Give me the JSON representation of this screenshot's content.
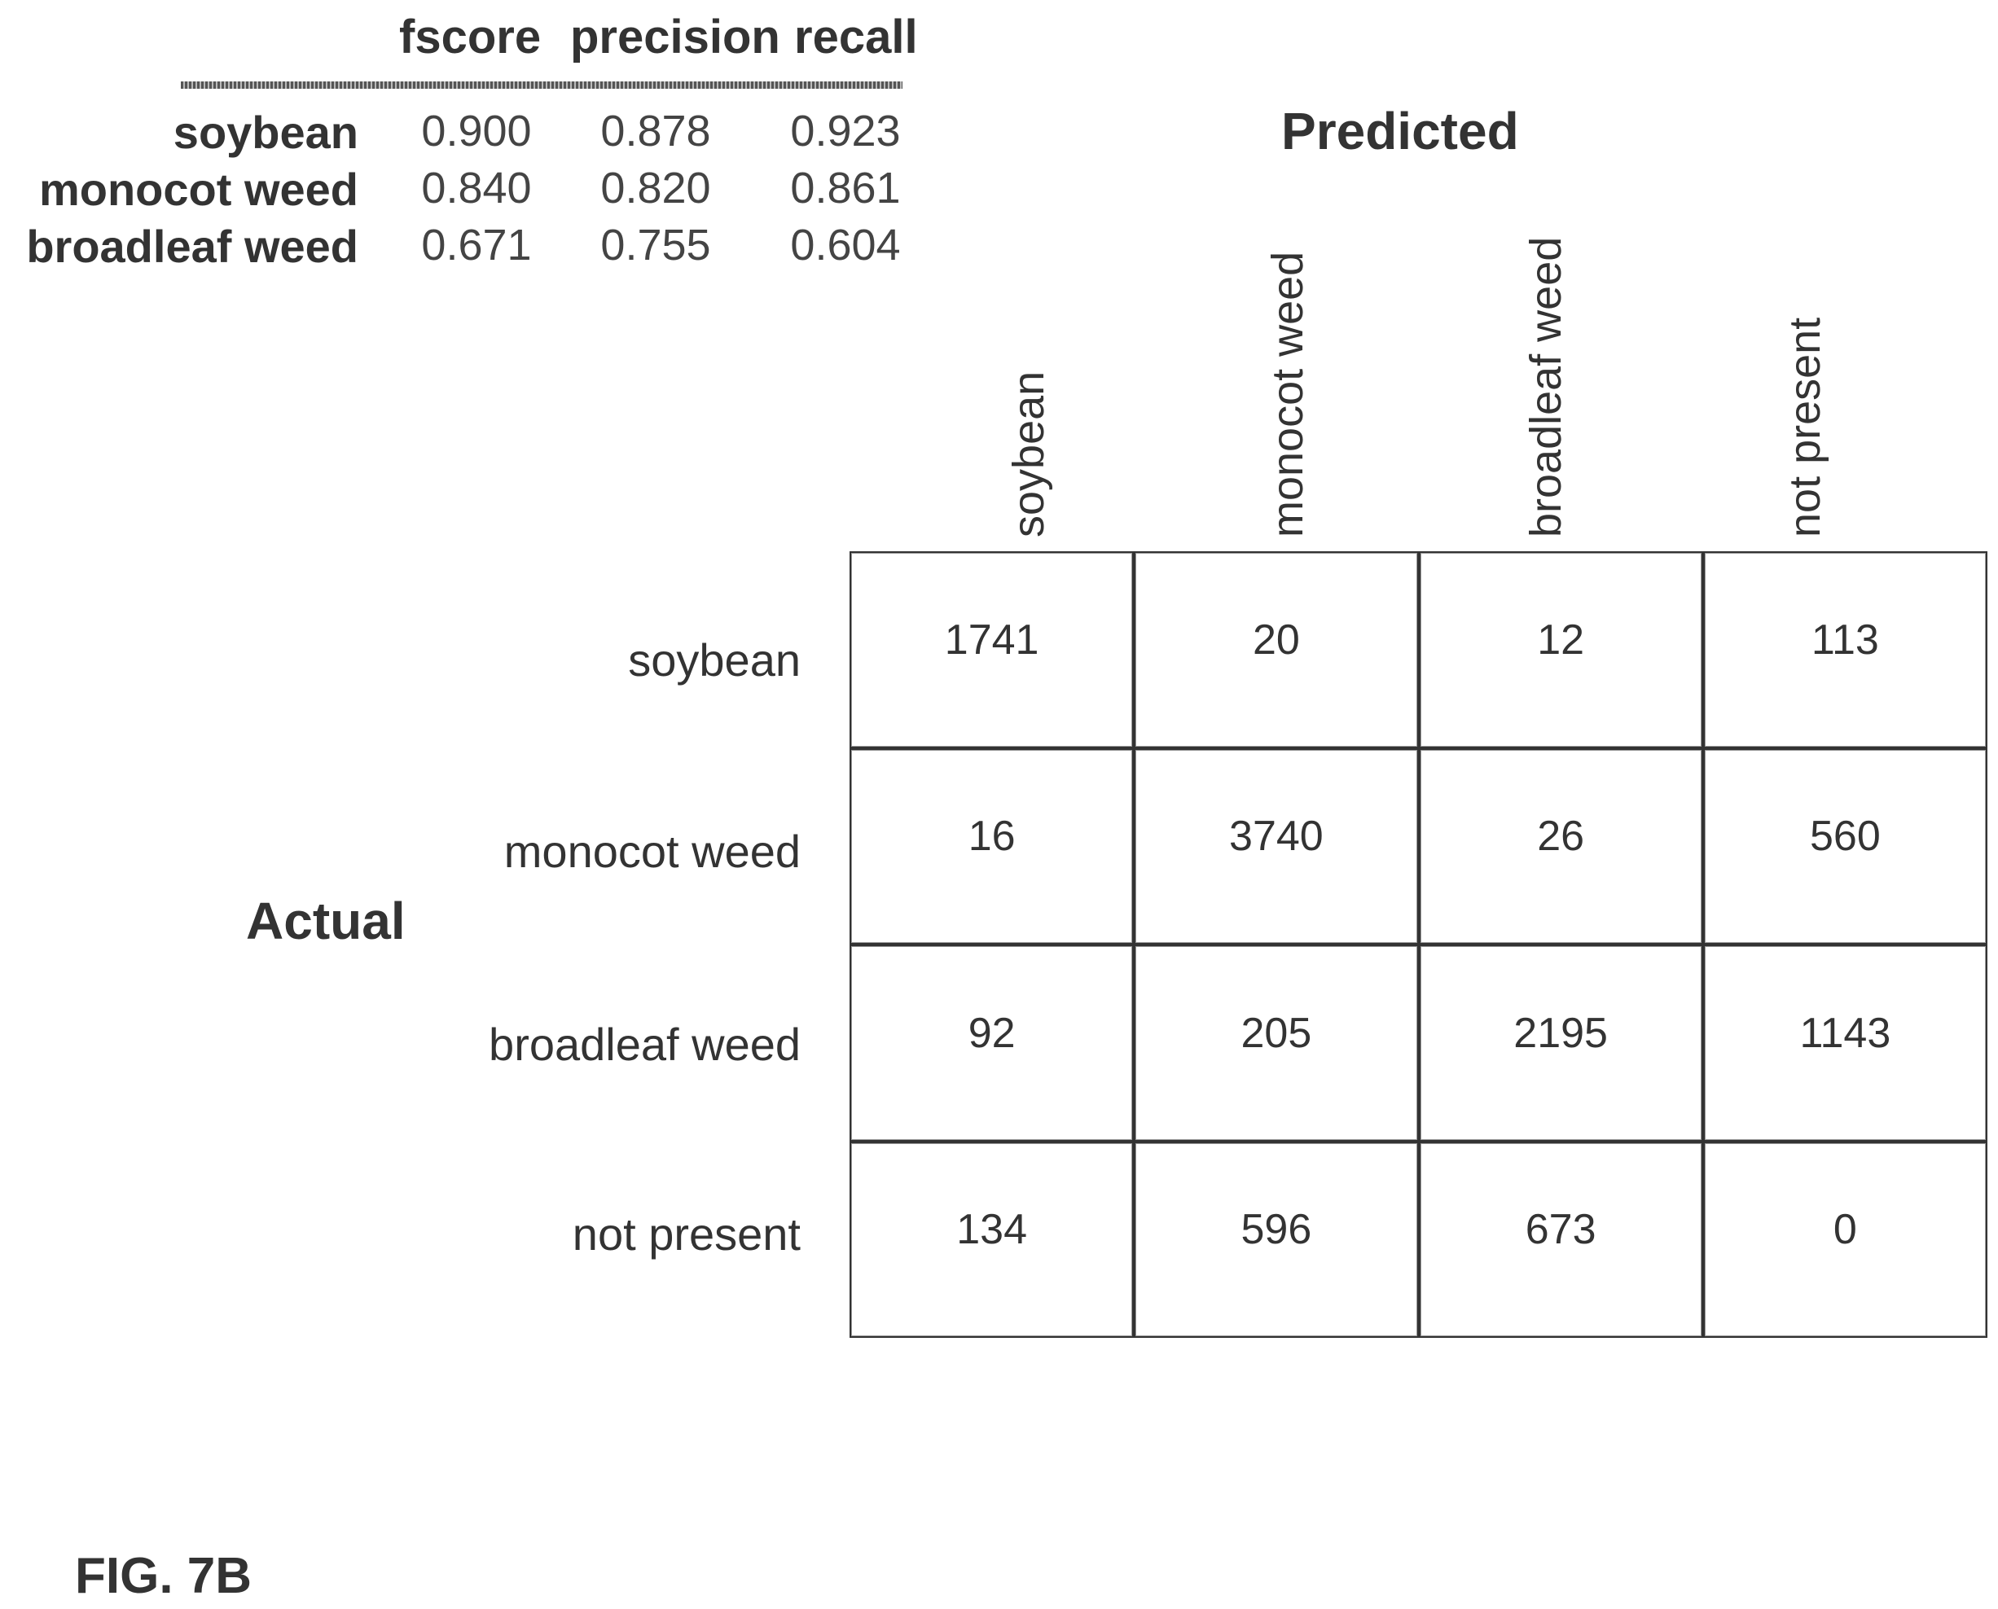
{
  "metrics": {
    "headers": [
      "fscore",
      "precision",
      "recall"
    ],
    "rows": [
      {
        "label": "soybean",
        "values": [
          "0.900",
          "0.878",
          "0.923"
        ]
      },
      {
        "label": "monocot weed",
        "values": [
          "0.840",
          "0.820",
          "0.861"
        ]
      },
      {
        "label": "broadleaf weed",
        "values": [
          "0.671",
          "0.755",
          "0.604"
        ]
      }
    ]
  },
  "chart_data": {
    "type": "heatmap",
    "xlabel": "Predicted",
    "ylabel": "Actual",
    "x_categories": [
      "soybean",
      "monocot weed",
      "broadleaf weed",
      "not present"
    ],
    "y_categories": [
      "soybean",
      "monocot weed",
      "broadleaf weed",
      "not present"
    ],
    "values": [
      [
        1741,
        20,
        12,
        113
      ],
      [
        16,
        3740,
        26,
        560
      ],
      [
        92,
        205,
        2195,
        1143
      ],
      [
        134,
        596,
        673,
        0
      ]
    ]
  },
  "figure_label": "FIG. 7B"
}
